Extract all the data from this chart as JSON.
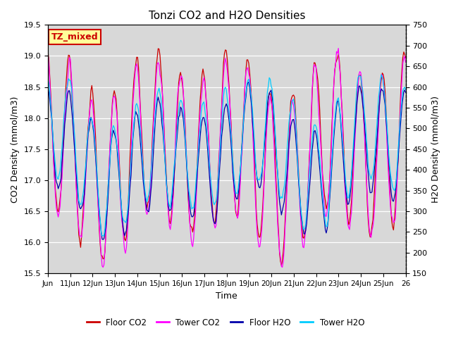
{
  "title": "Tonzi CO2 and H2O Densities",
  "xlabel": "Time",
  "ylabel_left": "CO2 Density (mmol/m3)",
  "ylabel_right": "H2O Density (mmol/m3)",
  "ylim_left": [
    15.5,
    19.5
  ],
  "ylim_right": [
    150,
    750
  ],
  "xtick_labels": [
    "Jun",
    "11Jun",
    "12Jun",
    "13Jun",
    "14Jun",
    "15Jun",
    "16Jun",
    "17Jun",
    "18Jun",
    "19Jun",
    "20Jun",
    "21Jun",
    "22Jun",
    "23Jun",
    "24Jun",
    "25Jun",
    "26"
  ],
  "legend_entries": [
    "Floor CO2",
    "Tower CO2",
    "Floor H2O",
    "Tower H2O"
  ],
  "line_colors": [
    "#cc0000",
    "#ff00ff",
    "#0000aa",
    "#00ccff"
  ],
  "annotation_text": "TZ_mixed",
  "annotation_color": "#cc0000",
  "annotation_bg": "#ffff99",
  "annotation_border": "#cc0000",
  "plot_bg": "#d8d8d8",
  "fig_bg": "#ffffff",
  "n_days": 16,
  "seed": 7
}
